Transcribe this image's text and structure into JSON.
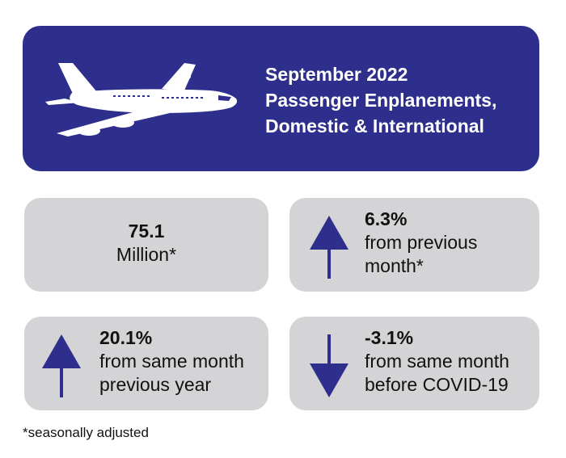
{
  "header": {
    "line1": "September 2022",
    "line2": "Passenger Enplanements,",
    "line3": "Domestic & International",
    "background": "#2e2f8c"
  },
  "stats": {
    "total": {
      "value": "75.1",
      "unit": "Million*"
    },
    "month_change": {
      "value": "6.3%",
      "line1": "from previous",
      "line2": "month*",
      "direction": "up"
    },
    "year_change": {
      "value": "20.1%",
      "line1": "from same month",
      "line2": "previous year",
      "direction": "up"
    },
    "covid_change": {
      "value": "-3.1%",
      "line1": "from same month",
      "line2": "before COVID-19",
      "direction": "down"
    }
  },
  "footnote": "*seasonally adjusted",
  "colors": {
    "accent": "#2e2f8c",
    "card": "#d4d4d6",
    "text": "#111111"
  },
  "icons": {
    "plane": "airplane-icon",
    "up": "arrow-up-icon",
    "down": "arrow-down-icon"
  }
}
